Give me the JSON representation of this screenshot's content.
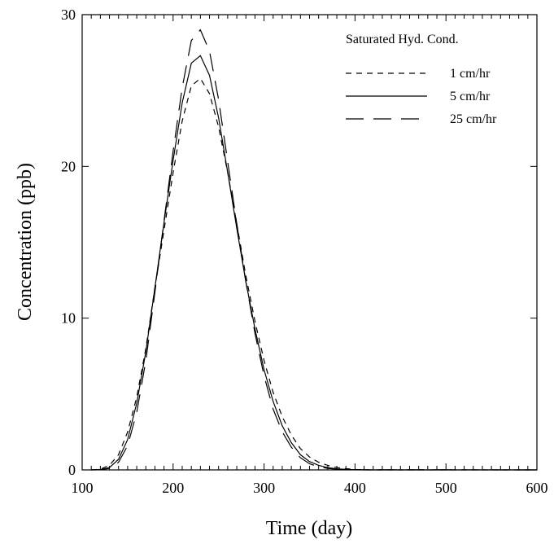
{
  "chart_data": {
    "type": "line",
    "xlabel": "Time (day)",
    "ylabel": "Concentration (ppb)",
    "xlim": [
      100,
      600
    ],
    "ylim": [
      0,
      30
    ],
    "x_ticks": [
      100,
      200,
      300,
      400,
      500,
      600
    ],
    "y_ticks": [
      0,
      10,
      20,
      30
    ],
    "x_tick_labels": [
      "100",
      "200",
      "300",
      "400",
      "500",
      "600"
    ],
    "y_tick_labels": [
      "0",
      "10",
      "20",
      "30"
    ],
    "x_minor_step": 10,
    "grid": false,
    "legend": {
      "title": "Saturated Hyd. Cond.",
      "placement": "top-right"
    },
    "series": [
      {
        "name": "1 cm/hr",
        "style": "short-dash",
        "x": [
          110,
          120,
          130,
          140,
          150,
          160,
          170,
          180,
          190,
          200,
          210,
          220,
          230,
          240,
          250,
          260,
          270,
          280,
          290,
          300,
          310,
          320,
          330,
          340,
          350,
          360,
          370,
          380,
          390,
          400,
          410,
          420,
          600
        ],
        "values": [
          0,
          0.05,
          0.3,
          1.0,
          2.5,
          4.8,
          8.0,
          12.0,
          15.8,
          19.6,
          23.0,
          25.3,
          25.8,
          24.8,
          22.6,
          19.6,
          16.2,
          12.8,
          9.8,
          7.2,
          5.1,
          3.5,
          2.3,
          1.4,
          0.85,
          0.5,
          0.3,
          0.15,
          0.08,
          0.03,
          0.01,
          0,
          0
        ]
      },
      {
        "name": "5 cm/hr",
        "style": "solid",
        "x": [
          110,
          120,
          130,
          140,
          150,
          160,
          170,
          180,
          190,
          200,
          210,
          220,
          230,
          240,
          250,
          260,
          270,
          280,
          290,
          300,
          310,
          320,
          330,
          340,
          350,
          360,
          370,
          380,
          390,
          400,
          410,
          600
        ],
        "values": [
          0,
          0.02,
          0.15,
          0.7,
          2.0,
          4.4,
          7.8,
          12.0,
          16.3,
          20.4,
          24.2,
          26.8,
          27.3,
          26.0,
          23.2,
          19.6,
          15.9,
          12.4,
          9.3,
          6.6,
          4.5,
          2.9,
          1.8,
          1.0,
          0.55,
          0.3,
          0.15,
          0.07,
          0.03,
          0.01,
          0,
          0
        ]
      },
      {
        "name": "25 cm/hr",
        "style": "long-dash",
        "x": [
          110,
          120,
          130,
          140,
          150,
          160,
          170,
          180,
          190,
          200,
          210,
          220,
          230,
          240,
          250,
          260,
          270,
          280,
          290,
          300,
          310,
          320,
          330,
          340,
          350,
          360,
          370,
          380,
          390,
          400,
          600
        ],
        "values": [
          0,
          0.01,
          0.1,
          0.5,
          1.6,
          3.8,
          7.2,
          11.7,
          16.4,
          21.0,
          25.2,
          28.3,
          29.0,
          27.6,
          24.4,
          20.3,
          16.2,
          12.4,
          9.0,
          6.2,
          4.0,
          2.5,
          1.5,
          0.8,
          0.4,
          0.2,
          0.1,
          0.05,
          0.02,
          0.01,
          0
        ]
      }
    ]
  }
}
